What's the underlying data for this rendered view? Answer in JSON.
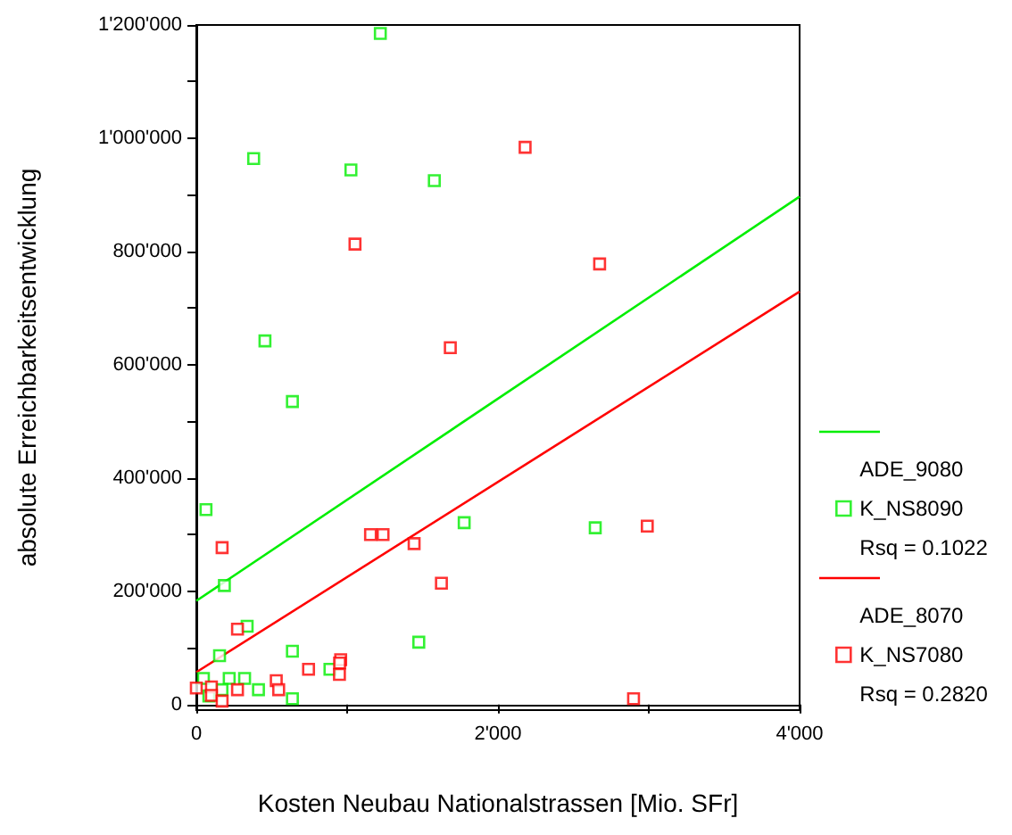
{
  "chart_data": {
    "type": "scatter",
    "xlabel": "Kosten Neubau Nationalstrassen [Mio. SFr]",
    "ylabel": "absolute Erreichbarkeitsentwicklung",
    "xlim": [
      0,
      4000
    ],
    "xticks": [
      {
        "value": 0,
        "label": "0"
      },
      {
        "value": 1000,
        "label": null
      },
      {
        "value": 2000,
        "label": "2'000"
      },
      {
        "value": 3000,
        "label": null
      },
      {
        "value": 4000,
        "label": "4'000"
      }
    ],
    "ylim": [
      -10000,
      1200000
    ],
    "yticks": [
      {
        "value": 0,
        "label": "0"
      },
      {
        "value": 100000,
        "label": null
      },
      {
        "value": 200000,
        "label": "200'000"
      },
      {
        "value": 300000,
        "label": null
      },
      {
        "value": 400000,
        "label": "400'000"
      },
      {
        "value": 500000,
        "label": null
      },
      {
        "value": 600000,
        "label": "600'000"
      },
      {
        "value": 700000,
        "label": null
      },
      {
        "value": 800000,
        "label": "800'000"
      },
      {
        "value": 900000,
        "label": null
      },
      {
        "value": 1000000,
        "label": "1'000'000"
      },
      {
        "value": 1100000,
        "label": null
      },
      {
        "value": 1200000,
        "label": "1'200'000"
      }
    ],
    "legend": "right",
    "marker": "square",
    "series": [
      {
        "type": "line",
        "marker": "none",
        "color": "#00ee00",
        "x": [
          0,
          4000
        ],
        "values": [
          183000,
          897000
        ]
      },
      {
        "name": "ADE_9080\nK_NS8090\nRsq = 0.1022",
        "color": "#00ee00",
        "x": [
          1220,
          380,
          1025,
          1578,
          455,
          637,
          64,
          1776,
          2645,
          186,
          1475,
          337,
          637,
          154,
          886,
          47,
          218,
          320,
          412,
          170,
          83,
          637
        ],
        "values": [
          1185000,
          964000,
          944000,
          925000,
          642000,
          535000,
          344000,
          321000,
          312000,
          210000,
          110000,
          138000,
          94000,
          86000,
          62000,
          46000,
          46000,
          46000,
          26000,
          26000,
          15000,
          10000
        ]
      },
      {
        "type": "line",
        "marker": "none",
        "color": "#ff0000",
        "x": [
          0,
          4000
        ],
        "values": [
          57000,
          729000
        ]
      },
      {
        "name": "ADE_8070\nK_NS7080\nRsq = 0.2820",
        "color": "#ff0000",
        "x": [
          2180,
          1052,
          2674,
          1684,
          171,
          1155,
          1238,
          1444,
          1625,
          2990,
          273,
          744,
          957,
          950,
          949,
          530,
          546,
          273,
          0,
          100,
          100,
          171,
          2899
        ],
        "values": [
          984000,
          813000,
          778000,
          630000,
          277000,
          300000,
          300000,
          284000,
          214000,
          315000,
          133000,
          62000,
          79000,
          73000,
          53000,
          42000,
          26000,
          26000,
          29000,
          31000,
          16000,
          6000,
          10000
        ]
      }
    ]
  }
}
